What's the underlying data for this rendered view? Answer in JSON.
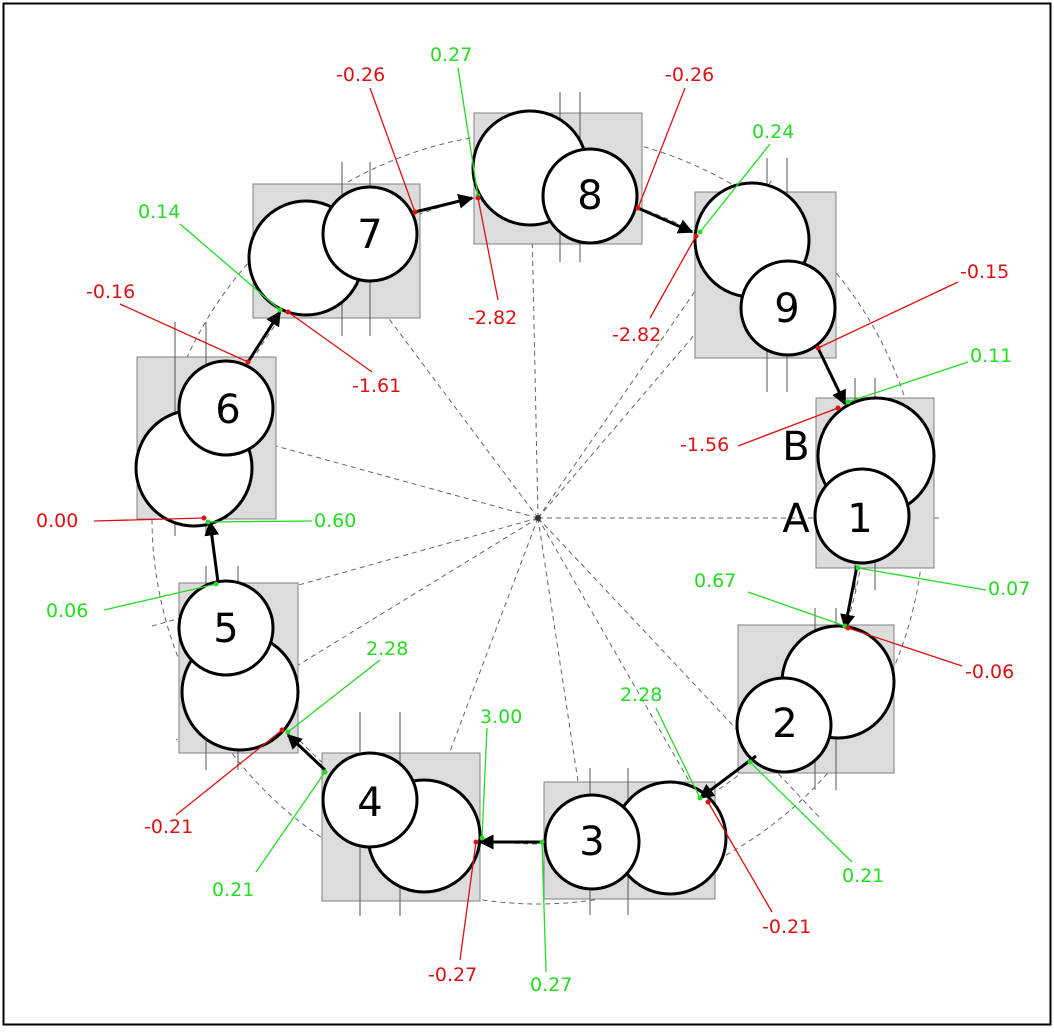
{
  "colors": {
    "background": "#ffffff",
    "frame": "#000000",
    "box_fill": "#dcdcdc",
    "box_stroke": "#808080",
    "green": "#22dd22",
    "red": "#dd1111",
    "guide": "#666666"
  },
  "end_labels": {
    "a": "A",
    "b": "B"
  },
  "units": [
    {
      "id": "1",
      "label": "1"
    },
    {
      "id": "2",
      "label": "2"
    },
    {
      "id": "3",
      "label": "3"
    },
    {
      "id": "4",
      "label": "4"
    },
    {
      "id": "5",
      "label": "5"
    },
    {
      "id": "6",
      "label": "6"
    },
    {
      "id": "7",
      "label": "7"
    },
    {
      "id": "8",
      "label": "8"
    },
    {
      "id": "9",
      "label": "9"
    }
  ],
  "values": [
    {
      "id": "v1",
      "text": "0.11",
      "color": "green"
    },
    {
      "id": "v2",
      "text": "-1.56",
      "color": "red"
    },
    {
      "id": "v3",
      "text": "0.07",
      "color": "green"
    },
    {
      "id": "v4",
      "text": "0.67",
      "color": "green"
    },
    {
      "id": "v5",
      "text": "-0.06",
      "color": "red"
    },
    {
      "id": "v6",
      "text": "2.28",
      "color": "green"
    },
    {
      "id": "v7",
      "text": "0.21",
      "color": "green"
    },
    {
      "id": "v8",
      "text": "-0.21",
      "color": "red"
    },
    {
      "id": "v9",
      "text": "3.00",
      "color": "green"
    },
    {
      "id": "v10",
      "text": "0.27",
      "color": "green"
    },
    {
      "id": "v11",
      "text": "-0.27",
      "color": "red"
    },
    {
      "id": "v12",
      "text": "2.28",
      "color": "green"
    },
    {
      "id": "v13",
      "text": "0.21",
      "color": "green"
    },
    {
      "id": "v14",
      "text": "-0.21",
      "color": "red"
    },
    {
      "id": "v15",
      "text": "0.06",
      "color": "green"
    },
    {
      "id": "v16",
      "text": "0.60",
      "color": "green"
    },
    {
      "id": "v17",
      "text": "0.00",
      "color": "red"
    },
    {
      "id": "v18",
      "text": "-0.16",
      "color": "red"
    },
    {
      "id": "v19",
      "text": "0.14",
      "color": "green"
    },
    {
      "id": "v20",
      "text": "-1.61",
      "color": "red"
    },
    {
      "id": "v21",
      "text": "-0.26",
      "color": "red"
    },
    {
      "id": "v22",
      "text": "0.27",
      "color": "green"
    },
    {
      "id": "v23",
      "text": "-2.82",
      "color": "red"
    },
    {
      "id": "v24",
      "text": "-0.26",
      "color": "red"
    },
    {
      "id": "v25",
      "text": "0.24",
      "color": "green"
    },
    {
      "id": "v26",
      "text": "-2.82",
      "color": "red"
    },
    {
      "id": "v27",
      "text": "-0.15",
      "color": "red"
    }
  ]
}
